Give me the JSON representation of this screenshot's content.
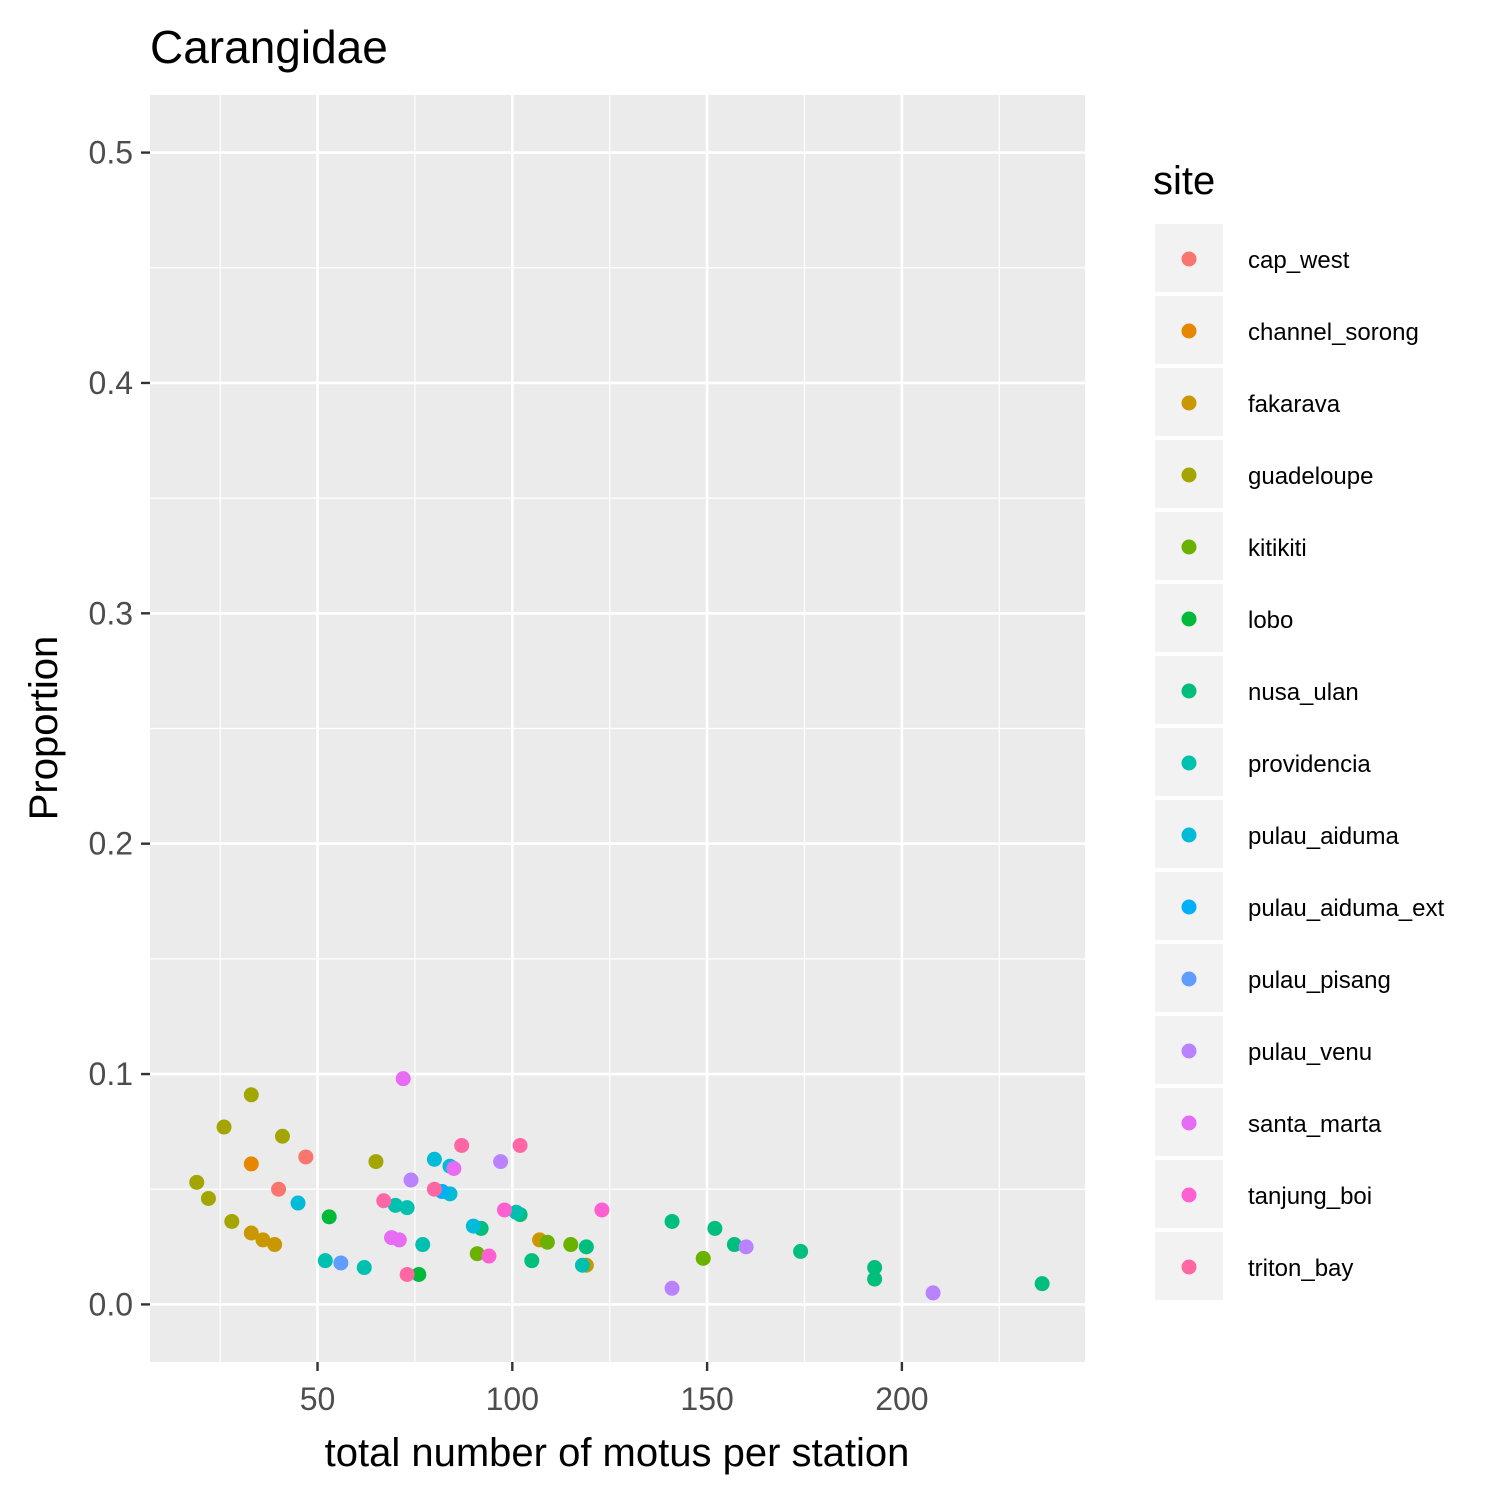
{
  "chart_data": {
    "type": "scatter",
    "title": "Carangidae",
    "xlabel": "total number of motus per station",
    "ylabel": "Proportion",
    "xlim": [
      7,
      247
    ],
    "ylim": [
      -0.025,
      0.525
    ],
    "x_ticks": [
      50,
      100,
      150,
      200
    ],
    "x_minor": [
      25,
      75,
      125,
      175,
      225
    ],
    "y_ticks": [
      0.0,
      0.1,
      0.2,
      0.3,
      0.4,
      0.5
    ],
    "y_tick_labels": [
      "0.0",
      "0.1",
      "0.2",
      "0.3",
      "0.4",
      "0.5"
    ],
    "y_minor": [
      0.05,
      0.15,
      0.25,
      0.35,
      0.45
    ],
    "grid": true,
    "panel_background": "#ebebeb",
    "legend": {
      "title": "site",
      "position": "right"
    },
    "series": [
      {
        "name": "cap_west",
        "color": "#F8766D",
        "points": [
          [
            40,
            0.05
          ],
          [
            47,
            0.064
          ]
        ]
      },
      {
        "name": "channel_sorong",
        "color": "#E58700",
        "points": [
          [
            33,
            0.061
          ]
        ]
      },
      {
        "name": "fakarava",
        "color": "#C99800",
        "points": [
          [
            33,
            0.031
          ],
          [
            36,
            0.028
          ],
          [
            39,
            0.026
          ],
          [
            107,
            0.028
          ],
          [
            119,
            0.017
          ]
        ]
      },
      {
        "name": "guadeloupe",
        "color": "#A3A500",
        "points": [
          [
            19,
            0.053
          ],
          [
            22,
            0.046
          ],
          [
            26,
            0.077
          ],
          [
            28,
            0.036
          ],
          [
            33,
            0.091
          ],
          [
            41,
            0.073
          ],
          [
            65,
            0.062
          ]
        ]
      },
      {
        "name": "kitikiti",
        "color": "#6BB100",
        "points": [
          [
            91,
            0.022
          ],
          [
            109,
            0.027
          ],
          [
            115,
            0.026
          ],
          [
            149,
            0.02
          ]
        ]
      },
      {
        "name": "lobo",
        "color": "#00BA38",
        "points": [
          [
            53,
            0.038
          ],
          [
            76,
            0.013
          ]
        ]
      },
      {
        "name": "nusa_ulan",
        "color": "#00BF7D",
        "points": [
          [
            92,
            0.033
          ],
          [
            102,
            0.039
          ],
          [
            105,
            0.019
          ],
          [
            119,
            0.025
          ],
          [
            141,
            0.036
          ],
          [
            152,
            0.033
          ],
          [
            157,
            0.026
          ],
          [
            174,
            0.023
          ],
          [
            193,
            0.016
          ],
          [
            193,
            0.011
          ],
          [
            236,
            0.009
          ]
        ]
      },
      {
        "name": "providencia",
        "color": "#00C0AF",
        "points": [
          [
            52,
            0.019
          ],
          [
            62,
            0.016
          ],
          [
            70,
            0.043
          ],
          [
            73,
            0.042
          ],
          [
            77,
            0.026
          ],
          [
            101,
            0.04
          ],
          [
            118,
            0.017
          ]
        ]
      },
      {
        "name": "pulau_aiduma",
        "color": "#00BCD8",
        "points": [
          [
            45,
            0.044
          ],
          [
            80,
            0.063
          ],
          [
            84,
            0.06
          ],
          [
            84,
            0.048
          ],
          [
            90,
            0.034
          ]
        ]
      },
      {
        "name": "pulau_aiduma_ext",
        "color": "#00B0F6",
        "points": [
          [
            82,
            0.049
          ]
        ]
      },
      {
        "name": "pulau_pisang",
        "color": "#619CFF",
        "points": [
          [
            56,
            0.018
          ]
        ]
      },
      {
        "name": "pulau_venu",
        "color": "#B983FF",
        "points": [
          [
            74,
            0.054
          ],
          [
            97,
            0.062
          ],
          [
            141,
            0.007
          ],
          [
            160,
            0.025
          ],
          [
            208,
            0.005
          ]
        ]
      },
      {
        "name": "santa_marta",
        "color": "#E76BF3",
        "points": [
          [
            69,
            0.029
          ],
          [
            71,
            0.028
          ],
          [
            72,
            0.098
          ],
          [
            85,
            0.059
          ]
        ]
      },
      {
        "name": "tanjung_boi",
        "color": "#FD61D1",
        "points": [
          [
            94,
            0.021
          ],
          [
            98,
            0.041
          ],
          [
            123,
            0.041
          ]
        ]
      },
      {
        "name": "triton_bay",
        "color": "#FF67A4",
        "points": [
          [
            67,
            0.045
          ],
          [
            73,
            0.013
          ],
          [
            80,
            0.05
          ],
          [
            87,
            0.069
          ],
          [
            102,
            0.069
          ]
        ]
      }
    ]
  }
}
